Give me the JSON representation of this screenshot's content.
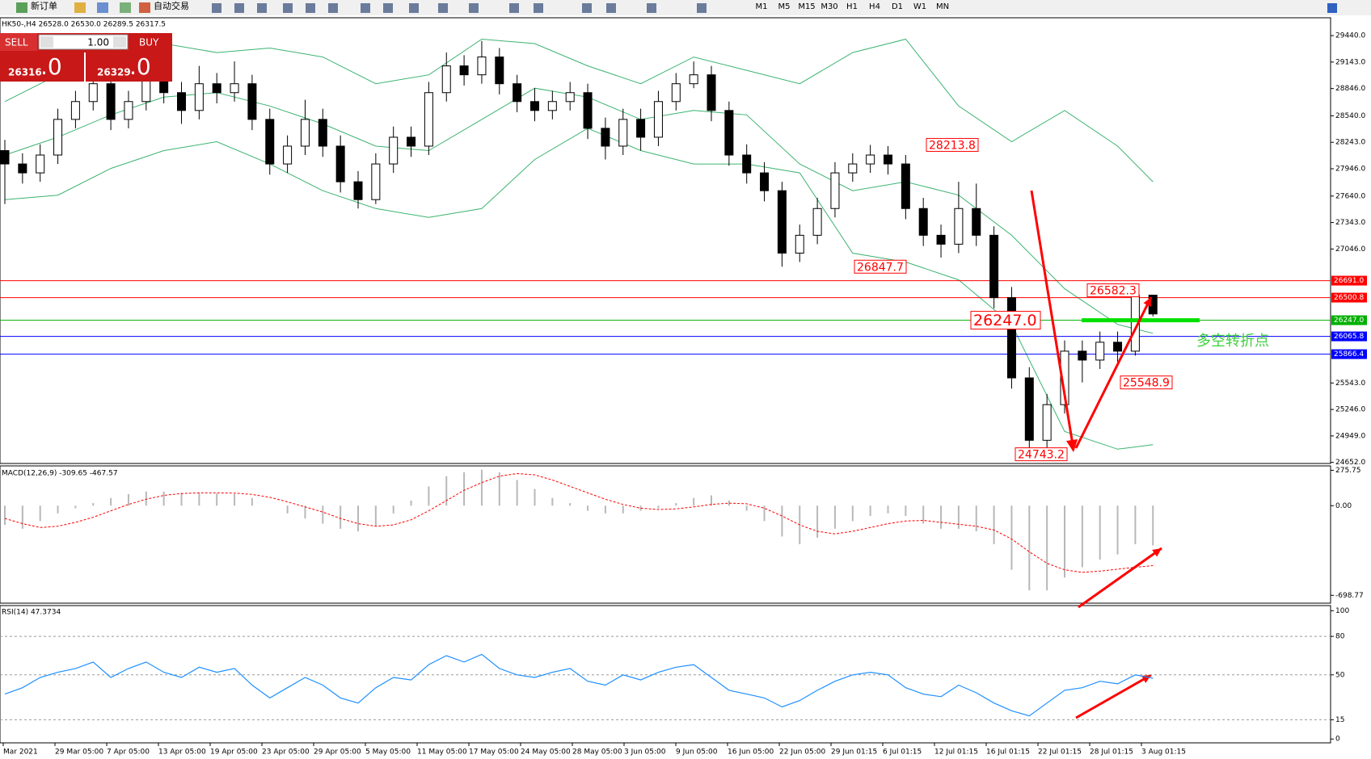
{
  "toolbar": {
    "new_order": "新订单",
    "auto_trading": "自动交易",
    "timeframes": [
      "M1",
      "M5",
      "M15",
      "M30",
      "H1",
      "H4",
      "D1",
      "W1",
      "MN"
    ]
  },
  "trade_panel": {
    "sell": "SELL",
    "buy": "BUY",
    "lots": "1.00",
    "sell_price": "26316",
    "sell_pips": ".0",
    "buy_price": "26329",
    "buy_pips": ".0"
  },
  "chart_data": {
    "type": "candlestick",
    "title": "HK50-,H4 26528.0 26530.0 26289.5 26317.5",
    "ylim": [
      24640,
      29640
    ],
    "yticks": [
      {
        "value": 29440,
        "label": "29440.0"
      },
      {
        "value": 29143,
        "label": "29143.0"
      },
      {
        "value": 28846,
        "label": "28846.0"
      },
      {
        "value": 28540,
        "label": "28540.0"
      },
      {
        "value": 28243,
        "label": "28243.0"
      },
      {
        "value": 27946,
        "label": "27946.0"
      },
      {
        "value": 27640,
        "label": "27640.0"
      },
      {
        "value": 27343,
        "label": "27343.0"
      },
      {
        "value": 27046,
        "label": "27046.0"
      },
      {
        "value": 25543,
        "label": "25543.0"
      },
      {
        "value": 25246,
        "label": "25246.0"
      },
      {
        "value": 24949,
        "label": "24949.0"
      },
      {
        "value": 24652,
        "label": "24652.0"
      }
    ],
    "x_labels": [
      "Mar 2021",
      "29 Mar 05:00",
      "7 Apr 05:00",
      "13 Apr 05:00",
      "19 Apr 05:00",
      "23 Apr 05:00",
      "29 Apr 05:00",
      "5 May 05:00",
      "11 May 05:00",
      "17 May 05:00",
      "24 May 05:00",
      "28 May 05:00",
      "3 Jun 05:00",
      "9 Jun 05:00",
      "16 Jun 05:00",
      "22 Jun 05:00",
      "29 Jun 01:15",
      "6 Jul 01:15",
      "12 Jul 01:15",
      "16 Jul 01:15",
      "22 Jul 01:15",
      "28 Jul 01:15",
      "3 Aug 01:15"
    ],
    "open": [
      28150,
      28000,
      27900,
      28100,
      28500,
      28700,
      28900,
      28500,
      28700,
      29000,
      28800,
      28600,
      28900,
      28800,
      28900,
      28500,
      28000,
      28200,
      28500,
      28200,
      27800,
      27600,
      28000,
      28300,
      28200,
      28800,
      29100,
      29000,
      29200,
      28900,
      28700,
      28600,
      28700,
      28800,
      28400,
      28200,
      28500,
      28300,
      28700,
      28900,
      29000,
      28600,
      28100,
      27900,
      27700,
      27000,
      27200,
      27500,
      27900,
      28000,
      28100,
      28000,
      27500,
      27200,
      27100,
      27500,
      27200,
      26500,
      25600,
      24900,
      25300,
      25900,
      25800,
      26000,
      25900,
      26528
    ],
    "high": [
      28270,
      28120,
      28220,
      28620,
      28820,
      29250,
      29000,
      28820,
      29300,
      29120,
      28920,
      29100,
      29020,
      29150,
      29000,
      28620,
      28320,
      28720,
      28620,
      28320,
      27920,
      28120,
      28420,
      28420,
      28920,
      29250,
      29220,
      29380,
      29300,
      29000,
      28850,
      28820,
      28920,
      28900,
      28520,
      28620,
      28620,
      28820,
      29020,
      29150,
      29100,
      28700,
      28220,
      28020,
      27800,
      27320,
      27620,
      28020,
      28120,
      28213.8,
      28200,
      28100,
      27620,
      27320,
      27800,
      27780,
      27300,
      26620,
      25720,
      25420,
      26020,
      26020,
      26120,
      26120,
      26582.3,
      26530
    ],
    "low": [
      27550,
      27780,
      27800,
      28000,
      28400,
      28600,
      28380,
      28400,
      28600,
      28680,
      28450,
      28500,
      28680,
      28700,
      28380,
      27880,
      27900,
      28100,
      28080,
      27680,
      27500,
      27550,
      27900,
      28080,
      28100,
      28700,
      28880,
      28900,
      28780,
      28580,
      28480,
      28500,
      28600,
      28280,
      28050,
      28100,
      28150,
      28200,
      28600,
      28850,
      28480,
      27980,
      27780,
      27580,
      26847.7,
      26900,
      27100,
      27400,
      27800,
      27900,
      27880,
      27380,
      27080,
      26950,
      27000,
      27080,
      26380,
      25480,
      24743.2,
      24800,
      25200,
      25548.9,
      25700,
      25780,
      25850,
      26289.5
    ],
    "close": [
      28000,
      27900,
      28100,
      28500,
      28700,
      28900,
      28500,
      28700,
      29000,
      28800,
      28600,
      28900,
      28800,
      28900,
      28500,
      28000,
      28200,
      28500,
      28200,
      27800,
      27600,
      28000,
      28300,
      28200,
      28800,
      29100,
      29000,
      29200,
      28900,
      28700,
      28600,
      28700,
      28800,
      28400,
      28200,
      28500,
      28300,
      28700,
      28900,
      29000,
      28600,
      28100,
      27900,
      27700,
      27000,
      27200,
      27500,
      27900,
      28000,
      28100,
      28000,
      27500,
      27200,
      27100,
      27500,
      27200,
      26500,
      25600,
      24900,
      25300,
      25900,
      25800,
      26000,
      25900,
      26528,
      26317.5
    ],
    "bands": {
      "color": "#3cb371",
      "x": [
        1,
        4,
        7,
        10,
        13,
        16,
        19,
        22,
        25,
        28,
        31,
        34,
        37,
        40,
        43,
        46,
        49,
        52,
        55,
        58,
        61,
        64,
        66
      ],
      "upper": [
        28700,
        29000,
        29200,
        29350,
        29250,
        29300,
        29200,
        28900,
        29000,
        29400,
        29350,
        29100,
        28900,
        29200,
        29050,
        28900,
        29250,
        29400,
        28650,
        28250,
        28600,
        28200,
        27800
      ],
      "middle": [
        28100,
        28300,
        28550,
        28750,
        28800,
        28650,
        28450,
        28200,
        28150,
        28500,
        28850,
        28750,
        28500,
        28600,
        28550,
        28000,
        27700,
        27800,
        27650,
        27200,
        26600,
        26200,
        26100
      ],
      "lower": [
        27600,
        27650,
        27950,
        28150,
        28250,
        28000,
        27700,
        27500,
        27400,
        27500,
        28050,
        28400,
        28150,
        28000,
        28000,
        27900,
        27000,
        26900,
        26700,
        26200,
        25000,
        24800,
        24850
      ]
    },
    "levels": [
      {
        "value": 26691.0,
        "label": "26691.0",
        "color": "#ff0000"
      },
      {
        "value": 26500.8,
        "label": "26500.8",
        "color": "#ff0000"
      },
      {
        "value": 26247.0,
        "label": "26247.0",
        "color": "#00b000"
      },
      {
        "value": 26065.8,
        "label": "26065.8",
        "color": "#0000ff"
      },
      {
        "value": 25866.4,
        "label": "25866.4",
        "color": "#0000ff"
      }
    ],
    "annotations": [
      {
        "value": 28213.8,
        "label": "28213.8"
      },
      {
        "value": 26847.7,
        "label": "26847.7"
      },
      {
        "value": 26582.3,
        "label": "26582.3"
      },
      {
        "value": 26247.0,
        "label": "26247.0"
      },
      {
        "value": 25548.9,
        "label": "25548.9"
      },
      {
        "value": 24743.2,
        "label": "24743.2"
      }
    ],
    "pivot_note": "多空转折点",
    "macd": {
      "title": "MACD(12,26,9) -309.65 -467.57",
      "ylim": [
        -760,
        310
      ],
      "yticks": [
        275.75,
        {
          "value": 0,
          "label": "0.00"
        },
        -698.77
      ],
      "histogram": [
        -150,
        -180,
        -120,
        -60,
        -20,
        20,
        60,
        90,
        110,
        110,
        100,
        100,
        95,
        90,
        60,
        0,
        -60,
        -100,
        -140,
        -180,
        -200,
        -160,
        -60,
        40,
        150,
        230,
        260,
        280,
        260,
        200,
        130,
        60,
        20,
        -40,
        -60,
        -60,
        -40,
        -20,
        20,
        60,
        80,
        40,
        -40,
        -120,
        -240,
        -300,
        -250,
        -180,
        -120,
        -80,
        -60,
        -80,
        -140,
        -180,
        -180,
        -200,
        -300,
        -500,
        -660,
        -660,
        -560,
        -480,
        -420,
        -380,
        -300,
        -309.65
      ],
      "signal": [
        -100,
        -140,
        -170,
        -160,
        -130,
        -90,
        -40,
        10,
        50,
        80,
        95,
        100,
        100,
        98,
        88,
        65,
        30,
        -10,
        -50,
        -100,
        -140,
        -160,
        -150,
        -110,
        -40,
        40,
        120,
        180,
        230,
        250,
        240,
        200,
        150,
        100,
        50,
        10,
        -20,
        -30,
        -25,
        -10,
        10,
        20,
        15,
        -20,
        -80,
        -150,
        -200,
        -220,
        -200,
        -170,
        -140,
        -120,
        -115,
        -130,
        -145,
        -160,
        -190,
        -260,
        -360,
        -450,
        -500,
        -520,
        -510,
        -495,
        -480,
        -467.57
      ]
    },
    "rsi": {
      "title": "RSI(14) 47.3734",
      "ylim": [
        -3,
        104
      ],
      "yticks": [
        100,
        80,
        50,
        15,
        0
      ],
      "levels": [
        80,
        50,
        15
      ],
      "color": "#1e90ff",
      "values": [
        35,
        40,
        48,
        52,
        55,
        60,
        48,
        55,
        60,
        52,
        48,
        56,
        52,
        55,
        42,
        32,
        40,
        48,
        42,
        32,
        28,
        40,
        48,
        46,
        58,
        65,
        60,
        66,
        55,
        50,
        48,
        52,
        55,
        45,
        42,
        50,
        46,
        52,
        56,
        58,
        48,
        38,
        35,
        32,
        25,
        30,
        38,
        45,
        50,
        52,
        50,
        40,
        35,
        33,
        42,
        36,
        28,
        22,
        18,
        28,
        38,
        40,
        45,
        43,
        50,
        47.3734
      ]
    }
  }
}
